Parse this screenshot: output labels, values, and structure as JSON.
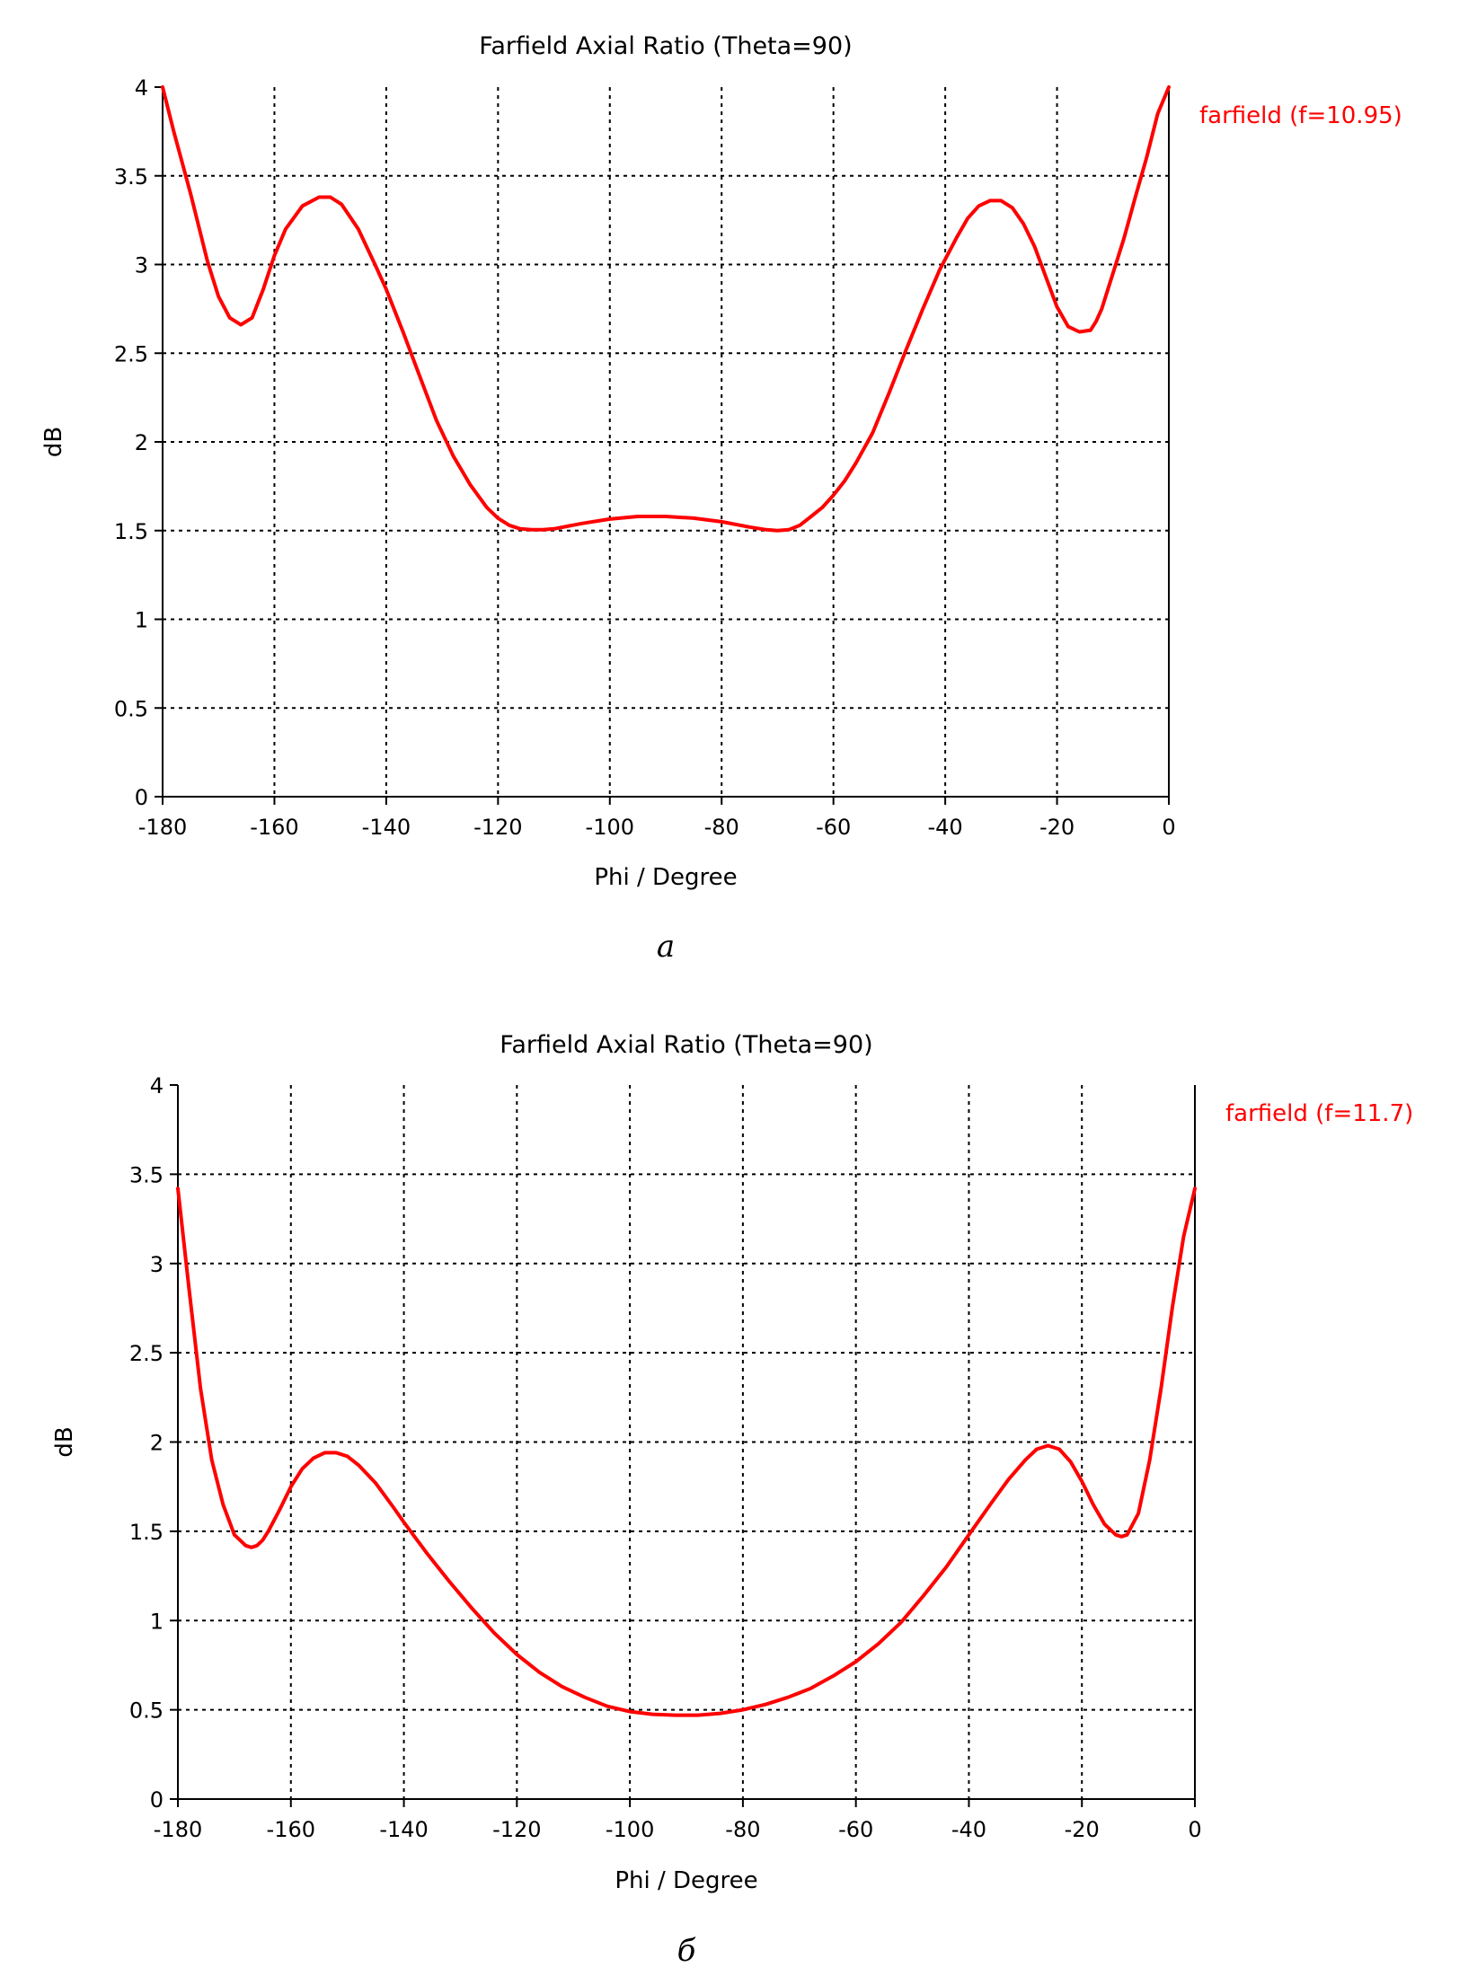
{
  "chart_data": [
    {
      "type": "line",
      "title": "Farfield  Axial Ratio (Theta=90)",
      "xlabel": "Phi / Degree",
      "ylabel": "dB",
      "xlim": [
        -180,
        0
      ],
      "ylim": [
        0,
        4
      ],
      "xticks": [
        -180,
        -160,
        -140,
        -120,
        -100,
        -80,
        -60,
        -40,
        -20,
        0
      ],
      "yticks": [
        0,
        0.5,
        1,
        1.5,
        2,
        2.5,
        3,
        3.5,
        4
      ],
      "grid": true,
      "legend_position": "top-right",
      "caption": "a",
      "series": [
        {
          "name": "farfield (f=10.95)",
          "color": "#ff0000",
          "x": [
            -180,
            -178,
            -175,
            -172,
            -170,
            -168,
            -166,
            -164,
            -162,
            -160,
            -158,
            -155,
            -152,
            -150,
            -148,
            -145,
            -142,
            -140,
            -137,
            -134,
            -131,
            -128,
            -125,
            -122,
            -120,
            -118,
            -116,
            -114,
            -112,
            -110,
            -105,
            -100,
            -95,
            -90,
            -85,
            -80,
            -75,
            -72,
            -70,
            -68,
            -66,
            -64,
            -62,
            -60,
            -58,
            -56,
            -53,
            -50,
            -47,
            -44,
            -41,
            -38,
            -36,
            -34,
            -32,
            -30,
            -28,
            -26,
            -24,
            -22,
            -20,
            -18,
            -16,
            -14,
            -13,
            -12,
            -10,
            -8,
            -6,
            -4,
            -2,
            0
          ],
          "y": [
            4.0,
            3.75,
            3.4,
            3.02,
            2.82,
            2.7,
            2.66,
            2.7,
            2.86,
            3.05,
            3.2,
            3.33,
            3.38,
            3.38,
            3.34,
            3.2,
            3.0,
            2.86,
            2.62,
            2.37,
            2.12,
            1.92,
            1.76,
            1.63,
            1.57,
            1.53,
            1.51,
            1.505,
            1.505,
            1.51,
            1.54,
            1.565,
            1.58,
            1.58,
            1.57,
            1.55,
            1.52,
            1.505,
            1.5,
            1.505,
            1.53,
            1.58,
            1.63,
            1.7,
            1.78,
            1.88,
            2.05,
            2.28,
            2.52,
            2.75,
            2.97,
            3.15,
            3.26,
            3.33,
            3.36,
            3.36,
            3.32,
            3.23,
            3.1,
            2.93,
            2.76,
            2.65,
            2.62,
            2.63,
            2.68,
            2.75,
            2.95,
            3.15,
            3.38,
            3.6,
            3.85,
            4.0
          ]
        }
      ]
    },
    {
      "type": "line",
      "title": "Farfield  Axial Ratio (Theta=90)",
      "xlabel": "Phi / Degree",
      "ylabel": "dB",
      "xlim": [
        -180,
        0
      ],
      "ylim": [
        0,
        4
      ],
      "xticks": [
        -180,
        -160,
        -140,
        -120,
        -100,
        -80,
        -60,
        -40,
        -20,
        0
      ],
      "yticks": [
        0,
        0.5,
        1,
        1.5,
        2,
        2.5,
        3,
        3.5,
        4
      ],
      "grid": true,
      "legend_position": "top-right",
      "caption": "б",
      "series": [
        {
          "name": "farfield (f=11.7)",
          "color": "#ff0000",
          "x": [
            -180,
            -178,
            -176,
            -174,
            -172,
            -170,
            -168,
            -167,
            -166,
            -165,
            -164,
            -162,
            -160,
            -158,
            -156,
            -154,
            -152,
            -150,
            -148,
            -145,
            -142,
            -140,
            -136,
            -132,
            -128,
            -124,
            -120,
            -116,
            -112,
            -108,
            -104,
            -100,
            -96,
            -92,
            -88,
            -84,
            -80,
            -76,
            -72,
            -68,
            -64,
            -60,
            -56,
            -52,
            -48,
            -44,
            -40,
            -36,
            -33,
            -30,
            -28,
            -26,
            -24,
            -22,
            -20,
            -18,
            -16,
            -14,
            -13,
            -12,
            -10,
            -8,
            -6,
            -4,
            -2,
            0
          ],
          "y": [
            3.42,
            2.85,
            2.3,
            1.9,
            1.65,
            1.48,
            1.42,
            1.41,
            1.42,
            1.45,
            1.5,
            1.62,
            1.75,
            1.85,
            1.91,
            1.94,
            1.94,
            1.92,
            1.87,
            1.77,
            1.64,
            1.55,
            1.38,
            1.22,
            1.07,
            0.93,
            0.81,
            0.71,
            0.63,
            0.57,
            0.52,
            0.49,
            0.475,
            0.47,
            0.47,
            0.48,
            0.5,
            0.53,
            0.57,
            0.62,
            0.69,
            0.77,
            0.87,
            0.99,
            1.14,
            1.3,
            1.48,
            1.66,
            1.79,
            1.9,
            1.96,
            1.98,
            1.96,
            1.89,
            1.78,
            1.65,
            1.54,
            1.48,
            1.47,
            1.48,
            1.6,
            1.9,
            2.3,
            2.75,
            3.15,
            3.42
          ]
        }
      ]
    }
  ]
}
